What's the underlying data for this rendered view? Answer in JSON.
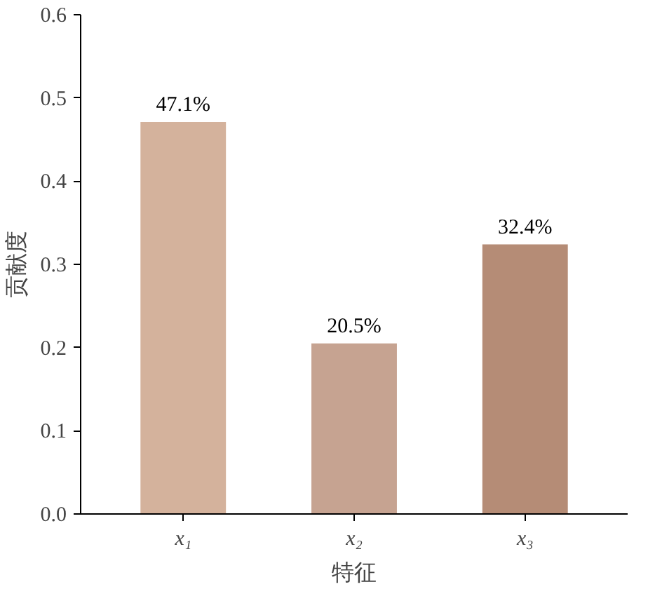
{
  "chart_data": {
    "type": "bar",
    "xlabel": "特征",
    "ylabel": "贡献度",
    "categories": [
      "x₁",
      "x₂",
      "x₃"
    ],
    "values": [
      0.471,
      0.205,
      0.324
    ],
    "value_labels": [
      "47.1%",
      "20.5%",
      "32.4%"
    ],
    "colors": [
      "#d4b29c",
      "#c6a391",
      "#b58c76"
    ],
    "ylim": [
      0,
      0.6
    ],
    "yticks": [
      {
        "value": 0,
        "label": "0.0"
      },
      {
        "value": 0.1,
        "label": "0.1"
      },
      {
        "value": 0.2,
        "label": "0.2"
      },
      {
        "value": 0.3,
        "label": "0.3"
      },
      {
        "value": 0.4,
        "label": "0.4"
      },
      {
        "value": 0.5,
        "label": "0.5"
      },
      {
        "value": 0.6,
        "label": "0.6"
      }
    ],
    "grid": false
  }
}
